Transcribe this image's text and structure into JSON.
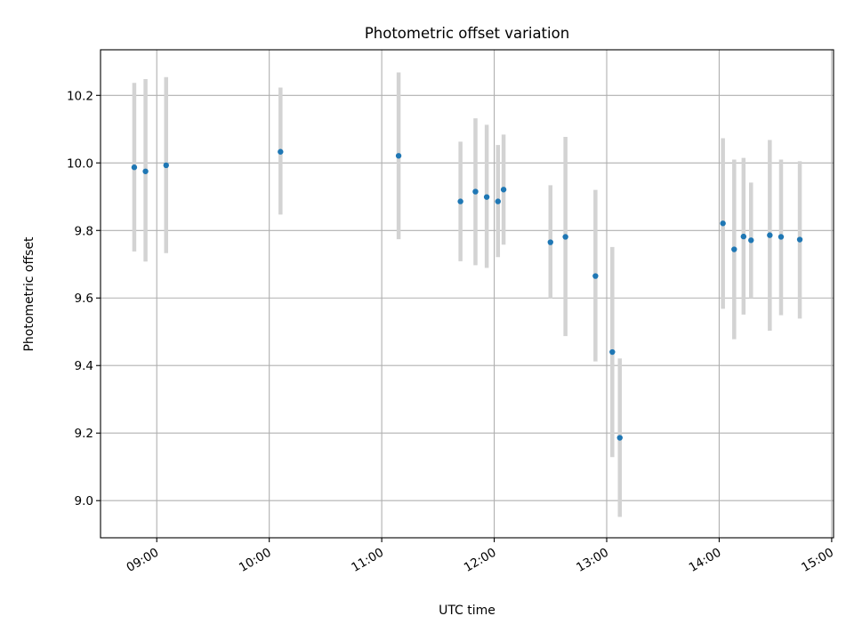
{
  "chart_data": {
    "type": "scatter",
    "title": "Photometric offset variation",
    "xlabel": "UTC time",
    "ylabel": "Photometric offset",
    "x_tick_labels": [
      "09:00",
      "10:00",
      "11:00",
      "12:00",
      "13:00",
      "14:00",
      "15:00"
    ],
    "y_tick_labels": [
      "9.0",
      "9.2",
      "9.4",
      "9.6",
      "9.8",
      "10.0",
      "10.2"
    ],
    "y_ticks": [
      9.0,
      9.2,
      9.4,
      9.6,
      9.8,
      10.0,
      10.2
    ],
    "xlim": [
      "08:30",
      "15:01"
    ],
    "ylim": [
      8.89,
      10.335
    ],
    "grid": true,
    "marker_color": "#1f77b4",
    "errorbar_color": "#d3d3d3",
    "points": [
      {
        "time": "08:48",
        "y": 9.987,
        "ylow": 9.738,
        "yhigh": 10.237
      },
      {
        "time": "08:54",
        "y": 9.975,
        "ylow": 9.708,
        "yhigh": 10.248
      },
      {
        "time": "09:05",
        "y": 9.993,
        "ylow": 9.733,
        "yhigh": 10.254
      },
      {
        "time": "10:06",
        "y": 10.033,
        "ylow": 9.847,
        "yhigh": 10.223
      },
      {
        "time": "11:09",
        "y": 10.021,
        "ylow": 9.774,
        "yhigh": 10.268
      },
      {
        "time": "11:42",
        "y": 9.886,
        "ylow": 9.709,
        "yhigh": 10.063
      },
      {
        "time": "11:50",
        "y": 9.915,
        "ylow": 9.697,
        "yhigh": 10.132
      },
      {
        "time": "11:56",
        "y": 9.899,
        "ylow": 9.689,
        "yhigh": 10.113
      },
      {
        "time": "12:02",
        "y": 9.886,
        "ylow": 9.721,
        "yhigh": 10.053
      },
      {
        "time": "12:05",
        "y": 9.921,
        "ylow": 9.758,
        "yhigh": 10.084
      },
      {
        "time": "12:30",
        "y": 9.765,
        "ylow": 9.598,
        "yhigh": 9.934
      },
      {
        "time": "12:38",
        "y": 9.781,
        "ylow": 9.487,
        "yhigh": 10.077
      },
      {
        "time": "12:54",
        "y": 9.665,
        "ylow": 9.412,
        "yhigh": 9.92
      },
      {
        "time": "13:03",
        "y": 9.44,
        "ylow": 9.129,
        "yhigh": 9.751
      },
      {
        "time": "13:07",
        "y": 9.186,
        "ylow": 8.952,
        "yhigh": 9.421
      },
      {
        "time": "14:02",
        "y": 9.821,
        "ylow": 9.568,
        "yhigh": 10.073
      },
      {
        "time": "14:08",
        "y": 9.744,
        "ylow": 9.478,
        "yhigh": 10.01
      },
      {
        "time": "14:13",
        "y": 9.782,
        "ylow": 9.551,
        "yhigh": 10.015
      },
      {
        "time": "14:17",
        "y": 9.771,
        "ylow": 9.6,
        "yhigh": 9.942
      },
      {
        "time": "14:27",
        "y": 9.786,
        "ylow": 9.503,
        "yhigh": 10.068
      },
      {
        "time": "14:33",
        "y": 9.781,
        "ylow": 9.549,
        "yhigh": 10.01
      },
      {
        "time": "14:43",
        "y": 9.773,
        "ylow": 9.539,
        "yhigh": 10.005
      }
    ]
  }
}
